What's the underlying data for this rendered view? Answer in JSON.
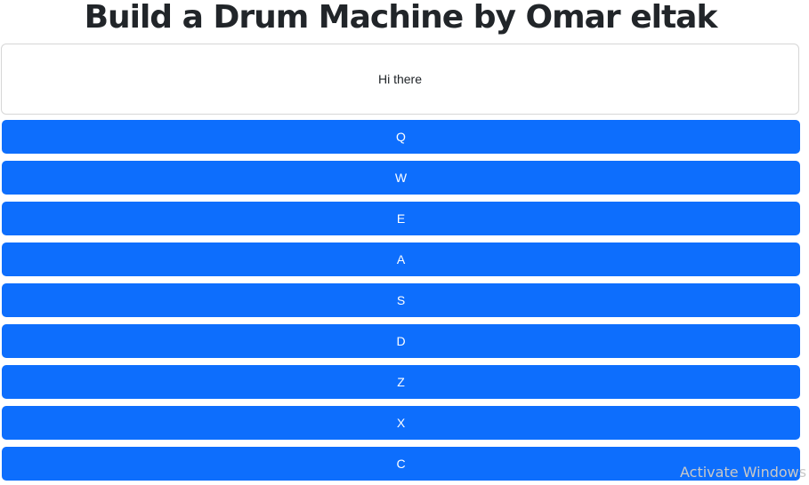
{
  "header": {
    "title": "Build a Drum Machine by Omar eltak"
  },
  "display": {
    "text": "Hi there"
  },
  "pads": [
    {
      "key": "Q"
    },
    {
      "key": "W"
    },
    {
      "key": "E"
    },
    {
      "key": "A"
    },
    {
      "key": "S"
    },
    {
      "key": "D"
    },
    {
      "key": "Z"
    },
    {
      "key": "X"
    },
    {
      "key": "C"
    }
  ],
  "watermark": {
    "text": "Activate Windows"
  },
  "colors": {
    "pad_background": "#0d6efd",
    "pad_text": "#ffffff"
  }
}
